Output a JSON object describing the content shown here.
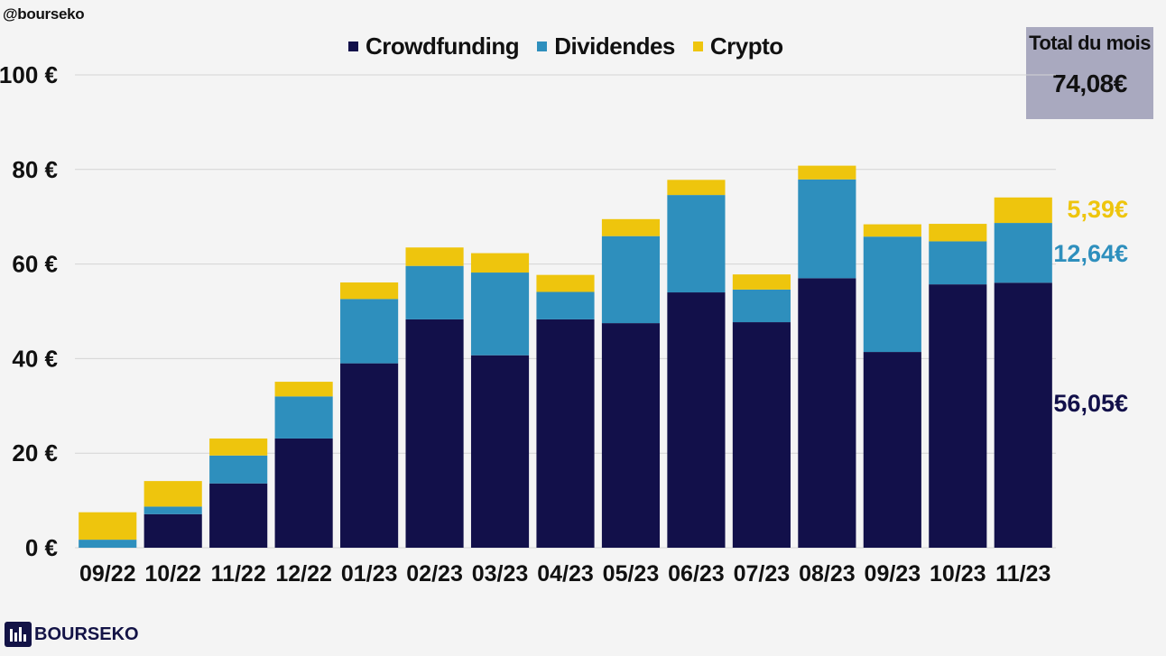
{
  "handle": "@bourseko",
  "brand": {
    "name": "BOURSEKO",
    "logo_icon": "bar-chart-icon"
  },
  "total_box": {
    "title": "Total du mois",
    "value": "74,08€"
  },
  "colors": {
    "crowdfunding": "#12104a",
    "dividendes": "#2e8fbd",
    "crypto": "#eec50d",
    "grid": "#d4d4d4",
    "total_box_bg": "#a9a9bf"
  },
  "chart_data": {
    "type": "bar",
    "stacked": true,
    "categories": [
      "09/22",
      "10/22",
      "11/22",
      "12/22",
      "01/23",
      "02/23",
      "03/23",
      "04/23",
      "05/23",
      "06/23",
      "07/23",
      "08/23",
      "09/23",
      "10/23",
      "11/23"
    ],
    "series": [
      {
        "name": "Crowdfunding",
        "values": [
          0,
          7.1,
          13.6,
          23.1,
          39.0,
          48.3,
          40.7,
          48.3,
          47.5,
          54.0,
          47.7,
          57.0,
          41.4,
          55.7,
          56.05
        ]
      },
      {
        "name": "Dividendes",
        "values": [
          1.7,
          1.6,
          5.9,
          8.9,
          13.6,
          11.3,
          17.5,
          5.8,
          18.4,
          20.6,
          6.9,
          20.9,
          24.4,
          9.1,
          12.64
        ]
      },
      {
        "name": "Crypto",
        "values": [
          5.8,
          5.4,
          3.6,
          3.1,
          3.5,
          3.9,
          4.1,
          3.6,
          3.6,
          3.2,
          3.2,
          2.9,
          2.6,
          3.7,
          5.39
        ]
      }
    ],
    "ylim": [
      0,
      100
    ],
    "yticks": [
      0,
      20,
      40,
      60,
      80,
      100
    ],
    "ytick_labels": [
      "0 €",
      "20 €",
      "40 €",
      "60 €",
      "80 €",
      "100 €"
    ],
    "title": "",
    "xlabel": "",
    "ylabel": "",
    "grid": true,
    "legend_position": "top-center",
    "annotations": [
      {
        "series": "Crypto",
        "text": "5,39€"
      },
      {
        "series": "Dividendes",
        "text": "12,64€"
      },
      {
        "series": "Crowdfunding",
        "text": "56,05€"
      }
    ]
  }
}
